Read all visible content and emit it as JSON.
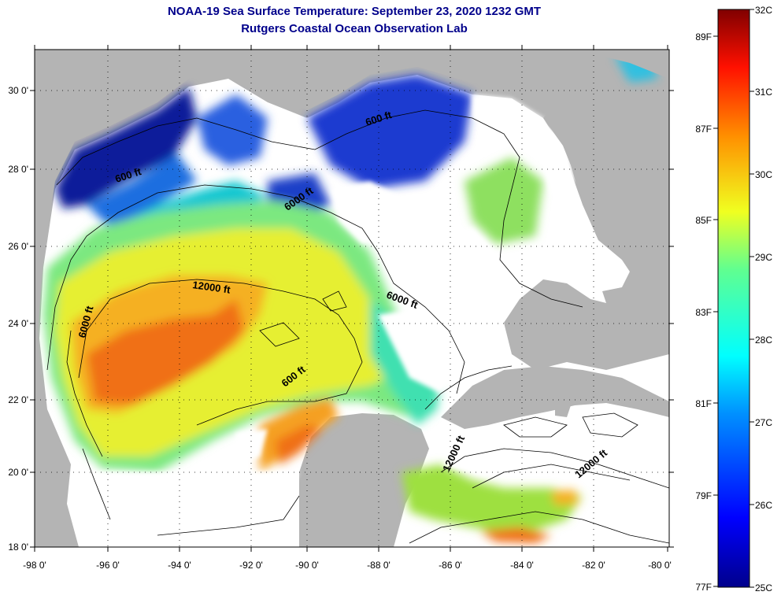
{
  "title": {
    "line1": "NOAA-19 Sea Surface Temperature:  September 23, 2020 1232 GMT",
    "line2": "Rutgers Coastal Ocean Observation Lab"
  },
  "axes": {
    "lon_labels": [
      "-98 0'",
      "-96 0'",
      "-94 0'",
      "-92 0'",
      "-90 0'",
      "-88 0'",
      "-86 0'",
      "-84 0'",
      "-82 0'",
      "-80 0'"
    ],
    "lat_labels": [
      "18 0'",
      "20 0'",
      "22 0'",
      "24 0'",
      "26 0'",
      "28 0'",
      "30 0'"
    ]
  },
  "contour_labels": [
    "600 ft",
    "6000 ft",
    "12000 ft",
    "6000 ft",
    "6000 ft",
    "600 ft",
    "600 ft",
    "12000 ft",
    "12000 ft"
  ],
  "colorbar": {
    "celsius": [
      "32C",
      "31C",
      "30C",
      "29C",
      "28C",
      "27C",
      "26C",
      "25C"
    ],
    "fahrenheit": [
      "89F",
      "87F",
      "85F",
      "83F",
      "81F",
      "79F",
      "77F"
    ]
  },
  "colors": {
    "land": "#b4b4b4",
    "cloud": "#ffffff",
    "title": "#00008b"
  }
}
